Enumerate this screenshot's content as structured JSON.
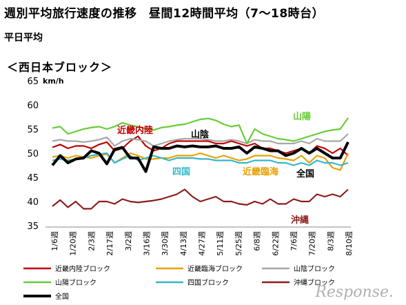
{
  "header": {
    "title": "週別平均旅行速度の推移　昼間12時間平均（7～18時台）",
    "subtitle": "平日平均",
    "region_label": "＜西日本ブロック＞"
  },
  "chart_data": {
    "type": "line",
    "ylabel": "km/h",
    "ylim": [
      35,
      65
    ],
    "yticks": [
      35,
      40,
      45,
      50,
      55,
      60,
      65
    ],
    "grid": false,
    "legend_position": "bottom",
    "x_tick_labels": [
      "1/6週",
      "1/20週",
      "2/3週",
      "2/17週",
      "3/2週",
      "3/16週",
      "3/30週",
      "4/13週",
      "4/27週",
      "5/11週",
      "5/25週",
      "6/8週",
      "6/22週",
      "7/6週",
      "7/20週",
      "8/3週",
      "8/10週"
    ],
    "series": [
      {
        "name": "近畿内陸ブロック",
        "label": "近畿内陸",
        "color": "#c00000",
        "values": [
          51.2,
          51.8,
          51.0,
          51.5,
          51.5,
          51.0,
          51.8,
          52.3,
          50.5,
          51.0,
          52.5,
          53.5,
          51.5,
          50.5,
          51.0,
          52.0,
          52.5,
          52.5,
          52.5,
          52.5,
          52.5,
          52.0,
          52.0,
          52.5,
          52.0,
          51.5,
          52.0,
          51.0,
          51.0,
          50.5,
          50.0,
          50.5,
          51.0,
          50.0,
          51.5,
          51.0,
          50.0,
          51.0,
          49.5
        ]
      },
      {
        "name": "近畿臨海ブロック",
        "label": "近畿臨海",
        "color": "#e8a000",
        "values": [
          49.2,
          49.5,
          49.0,
          49.5,
          49.2,
          49.0,
          49.5,
          49.8,
          48.0,
          49.0,
          50.0,
          49.5,
          48.8,
          48.8,
          49.0,
          49.0,
          49.5,
          49.5,
          49.5,
          50.0,
          49.5,
          49.0,
          49.5,
          49.0,
          48.5,
          48.8,
          49.5,
          49.5,
          49.5,
          49.0,
          48.8,
          48.5,
          49.5,
          48.0,
          49.5,
          49.0,
          47.0,
          46.5,
          50.0
        ]
      },
      {
        "name": "山陰ブロック",
        "label": "山陰",
        "color": "#a6a6a6",
        "values": [
          52.5,
          52.8,
          52.5,
          52.5,
          52.3,
          52.5,
          52.8,
          53.3,
          51.5,
          52.5,
          53.0,
          52.8,
          52.5,
          51.5,
          52.0,
          52.5,
          52.8,
          53.0,
          53.0,
          53.0,
          52.8,
          52.5,
          52.5,
          52.8,
          52.5,
          52.0,
          52.8,
          52.5,
          52.5,
          52.0,
          52.0,
          52.0,
          52.5,
          52.0,
          53.0,
          52.5,
          52.5,
          52.5,
          54.0
        ]
      },
      {
        "name": "山陽ブロック",
        "label": "山陽",
        "color": "#66cc33",
        "values": [
          55.2,
          55.5,
          54.0,
          54.5,
          55.0,
          55.3,
          55.5,
          55.0,
          55.5,
          56.3,
          55.8,
          55.5,
          55.0,
          54.8,
          55.3,
          55.5,
          55.8,
          56.0,
          56.5,
          57.0,
          57.2,
          56.8,
          56.0,
          55.5,
          55.8,
          52.0,
          55.0,
          54.0,
          53.5,
          53.0,
          52.8,
          52.5,
          53.0,
          53.5,
          54.0,
          54.5,
          54.8,
          55.0,
          57.3
        ]
      },
      {
        "name": "四国ブロック",
        "label": "四国",
        "color": "#33b5cc",
        "values": [
          48.5,
          48.8,
          48.5,
          48.8,
          49.0,
          49.5,
          49.8,
          50.0,
          48.0,
          48.8,
          49.5,
          48.5,
          49.0,
          49.5,
          49.0,
          48.5,
          49.0,
          49.0,
          49.0,
          48.8,
          48.8,
          48.5,
          48.5,
          48.5,
          48.0,
          48.0,
          48.5,
          48.5,
          48.5,
          48.0,
          48.0,
          47.5,
          48.0,
          47.5,
          48.5,
          48.0,
          48.0,
          47.5,
          48.0
        ]
      },
      {
        "name": "沖縄ブロック",
        "label": "沖縄",
        "color": "#8b1a1a",
        "values": [
          39.0,
          40.3,
          38.8,
          40.0,
          38.5,
          38.5,
          40.0,
          40.0,
          39.5,
          40.5,
          40.0,
          39.8,
          40.0,
          40.2,
          40.5,
          41.0,
          41.5,
          42.5,
          41.0,
          40.0,
          40.5,
          41.0,
          40.0,
          40.0,
          39.5,
          39.3,
          40.0,
          39.5,
          40.5,
          39.5,
          39.5,
          40.5,
          40.0,
          40.0,
          41.5,
          41.0,
          41.5,
          41.0,
          42.5
        ]
      },
      {
        "name": "全国",
        "label": "全国",
        "color": "#000000",
        "values": [
          47.5,
          49.5,
          48.0,
          48.8,
          49.0,
          50.5,
          50.0,
          47.8,
          50.8,
          51.2,
          49.0,
          49.0,
          46.2,
          51.3,
          51.0,
          51.0,
          51.5,
          51.3,
          51.5,
          51.3,
          51.3,
          51.5,
          51.0,
          51.0,
          51.3,
          50.0,
          51.3,
          51.0,
          50.5,
          50.5,
          49.5,
          50.0,
          51.0,
          50.0,
          51.0,
          50.0,
          49.0,
          49.0,
          52.3
        ]
      }
    ],
    "legend_entries": [
      "近畿内陸ブロック",
      "近畿臨海ブロック",
      "山陰ブロック",
      "山陽ブロック",
      "四国ブロック",
      "沖縄ブロック",
      "全国"
    ]
  },
  "watermark": "Response."
}
